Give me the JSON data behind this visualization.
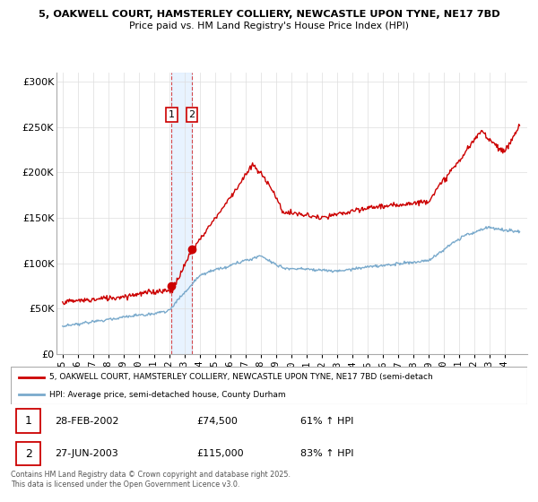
{
  "title1": "5, OAKWELL COURT, HAMSTERLEY COLLIERY, NEWCASTLE UPON TYNE, NE17 7BD",
  "title2": "Price paid vs. HM Land Registry's House Price Index (HPI)",
  "ylim": [
    0,
    310000
  ],
  "yticks": [
    0,
    50000,
    100000,
    150000,
    200000,
    250000,
    300000
  ],
  "ytick_labels": [
    "£0",
    "£50K",
    "£100K",
    "£150K",
    "£200K",
    "£250K",
    "£300K"
  ],
  "sale1_date": 2002.16,
  "sale1_price": 74500,
  "sale2_date": 2003.49,
  "sale2_price": 115000,
  "legend_line1": "5, OAKWELL COURT, HAMSTERLEY COLLIERY, NEWCASTLE UPON TYNE, NE17 7BD (semi-detach",
  "legend_line2": "HPI: Average price, semi-detached house, County Durham",
  "table_row1": [
    "1",
    "28-FEB-2002",
    "£74,500",
    "61% ↑ HPI"
  ],
  "table_row2": [
    "2",
    "27-JUN-2003",
    "£115,000",
    "83% ↑ HPI"
  ],
  "footnote": "Contains HM Land Registry data © Crown copyright and database right 2025.\nThis data is licensed under the Open Government Licence v3.0.",
  "red_color": "#cc0000",
  "blue_color": "#7aaacc",
  "shade_color": "#ddeeff",
  "background_color": "#ffffff",
  "grid_color": "#dddddd"
}
